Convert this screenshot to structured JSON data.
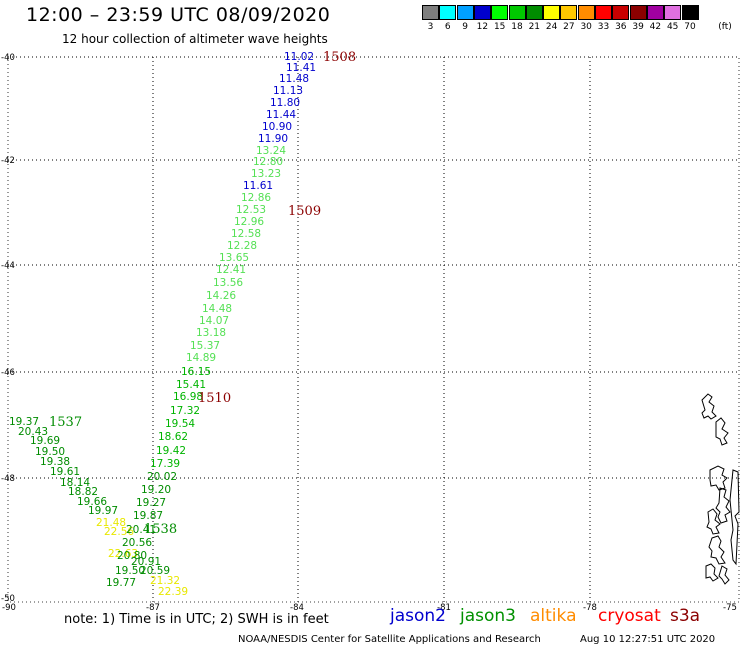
{
  "header": {
    "title": "12:00 – 23:59 UTC 08/09/2020",
    "subtitle": "12 hour collection of altimeter wave heights"
  },
  "scale": {
    "unit": "(ft)",
    "entries": [
      {
        "label": "3",
        "color": "#7f7f7f"
      },
      {
        "label": "6",
        "color": "#00ffff"
      },
      {
        "label": "9",
        "color": "#00a0ff"
      },
      {
        "label": "12",
        "color": "#0000cd"
      },
      {
        "label": "15",
        "color": "#00ff00"
      },
      {
        "label": "18",
        "color": "#00c800"
      },
      {
        "label": "21",
        "color": "#008c00"
      },
      {
        "label": "24",
        "color": "#ffff00"
      },
      {
        "label": "27",
        "color": "#ffc800"
      },
      {
        "label": "30",
        "color": "#ff8c00"
      },
      {
        "label": "33",
        "color": "#ff0000"
      },
      {
        "label": "36",
        "color": "#c80000"
      },
      {
        "label": "39",
        "color": "#8b0000"
      },
      {
        "label": "42",
        "color": "#a000a0"
      },
      {
        "label": "45",
        "color": "#e070e0"
      },
      {
        "label": "70",
        "color": "#000000"
      }
    ]
  },
  "axes": {
    "lat_labels": [
      "-40",
      "-42",
      "-44",
      "-46",
      "-48",
      "-50"
    ],
    "lon_labels": [
      "-90",
      "-87",
      "-84",
      "-81",
      "-78",
      "-75"
    ]
  },
  "observations": [
    {
      "text": "11.02",
      "color": "#0000cd"
    },
    {
      "text": "11.41",
      "color": "#0000cd"
    },
    {
      "text": "11.48",
      "color": "#0000cd"
    },
    {
      "text": "11.13",
      "color": "#0000cd"
    },
    {
      "text": "11.80",
      "color": "#0000cd"
    },
    {
      "text": "11.44",
      "color": "#0000cd"
    },
    {
      "text": "10.90",
      "color": "#0000cd"
    },
    {
      "text": "11.90",
      "color": "#0000cd"
    },
    {
      "text": "13.24",
      "color": "#55e055"
    },
    {
      "text": "12.80",
      "color": "#55e055"
    },
    {
      "text": "13.23",
      "color": "#55e055"
    },
    {
      "text": "11.61",
      "color": "#0000cd"
    },
    {
      "text": "12.86",
      "color": "#55e055"
    },
    {
      "text": "12.53",
      "color": "#55e055"
    },
    {
      "text": "12.96",
      "color": "#55e055"
    },
    {
      "text": "12.58",
      "color": "#55e055"
    },
    {
      "text": "12.28",
      "color": "#55e055"
    },
    {
      "text": "13.65",
      "color": "#55e055"
    },
    {
      "text": "12.41",
      "color": "#55e055"
    },
    {
      "text": "13.56",
      "color": "#55e055"
    },
    {
      "text": "14.26",
      "color": "#55e055"
    },
    {
      "text": "14.48",
      "color": "#55e055"
    },
    {
      "text": "14.07",
      "color": "#55e055"
    },
    {
      "text": "13.18",
      "color": "#55e055"
    },
    {
      "text": "15.37",
      "color": "#55e055"
    },
    {
      "text": "14.89",
      "color": "#55e055"
    },
    {
      "text": "16.15",
      "color": "#00b400"
    },
    {
      "text": "15.41",
      "color": "#00b400"
    },
    {
      "text": "16.98",
      "color": "#00b400"
    },
    {
      "text": "17.32",
      "color": "#00b400"
    },
    {
      "text": "19.54",
      "color": "#00b400"
    },
    {
      "text": "18.62",
      "color": "#00b400"
    },
    {
      "text": "19.42",
      "color": "#00b400"
    },
    {
      "text": "17.39",
      "color": "#00b400"
    },
    {
      "text": "20.02",
      "color": "#008c00"
    },
    {
      "text": "19.20",
      "color": "#008c00"
    },
    {
      "text": "19.27",
      "color": "#008c00"
    },
    {
      "text": "19.87",
      "color": "#008c00"
    },
    {
      "text": "19.37",
      "color": "#008c00"
    },
    {
      "text": "20.43",
      "color": "#008c00"
    },
    {
      "text": "19.69",
      "color": "#008c00"
    },
    {
      "text": "19.50",
      "color": "#008c00"
    },
    {
      "text": "19.38",
      "color": "#008c00"
    },
    {
      "text": "19.61",
      "color": "#008c00"
    },
    {
      "text": "18.14",
      "color": "#008c00"
    },
    {
      "text": "18.82",
      "color": "#008c00"
    },
    {
      "text": "19.66",
      "color": "#008c00"
    },
    {
      "text": "19.97",
      "color": "#008c00"
    },
    {
      "text": "21.48",
      "color": "#e8e800"
    },
    {
      "text": "22.56",
      "color": "#e8e800"
    },
    {
      "text": "20.41",
      "color": "#008c00"
    },
    {
      "text": "20.56",
      "color": "#008c00"
    },
    {
      "text": "22.63",
      "color": "#e8e800"
    },
    {
      "text": "20.80",
      "color": "#008c00"
    },
    {
      "text": "20.91",
      "color": "#008c00"
    },
    {
      "text": "19.50",
      "color": "#008c00"
    },
    {
      "text": "20.59",
      "color": "#008c00"
    },
    {
      "text": "19.77",
      "color": "#008c00"
    },
    {
      "text": "21.32",
      "color": "#e8e800"
    },
    {
      "text": "22.39",
      "color": "#e8e800"
    }
  ],
  "passes": [
    {
      "text": "1508",
      "color": "#8b0000"
    },
    {
      "text": "1509",
      "color": "#8b0000"
    },
    {
      "text": "1510",
      "color": "#8b0000"
    },
    {
      "text": "1537",
      "color": "#008c00"
    },
    {
      "text": "1538",
      "color": "#008c00"
    }
  ],
  "note": "note:  1) Time is in UTC;  2) SWH is in feet",
  "missions": [
    {
      "text": "jason2",
      "color": "#0000cd"
    },
    {
      "text": "jason3",
      "color": "#009000"
    },
    {
      "text": "altika",
      "color": "#ff8c00"
    },
    {
      "text": "cryosat",
      "color": "#ff0000"
    },
    {
      "text": "s3a",
      "color": "#8b0000"
    }
  ],
  "footer": {
    "credit": "NOAA/NESDIS Center for Satellite Applications and Research",
    "timestamp": "Aug 10 12:27:51 UTC 2020"
  }
}
